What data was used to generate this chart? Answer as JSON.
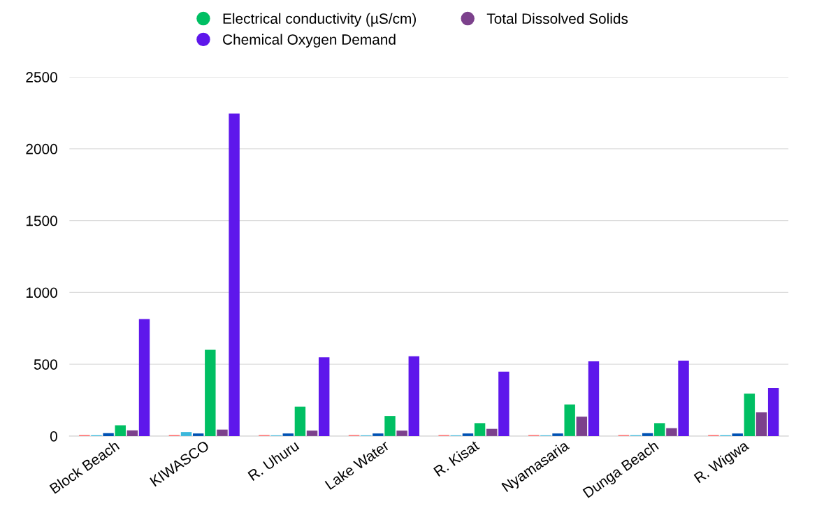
{
  "chart_data": {
    "type": "bar",
    "categories": [
      "Block Beach",
      "KIWASCO",
      "R. Uhuru",
      "Lake Water",
      "R. Kisat",
      "Nyamasaria",
      "Dunga Beach",
      "R. Wigwa"
    ],
    "series": [
      {
        "color": "#ff6b6b",
        "values": [
          7,
          7,
          7,
          7,
          7,
          7,
          7,
          7
        ]
      },
      {
        "color": "#3bb8dc",
        "values": [
          5,
          28,
          5,
          5,
          5,
          5,
          6,
          5
        ]
      },
      {
        "color": "#0052b4",
        "values": [
          20,
          18,
          18,
          18,
          18,
          18,
          20,
          18
        ]
      },
      {
        "name": "Electrical conductivity (µS/cm)",
        "color": "#00bf63",
        "values": [
          75,
          600,
          205,
          140,
          90,
          220,
          90,
          295
        ]
      },
      {
        "name": "Total Dissolved Solids",
        "color": "#7c418c",
        "values": [
          40,
          45,
          38,
          38,
          50,
          135,
          55,
          165
        ]
      },
      {
        "name": "Chemical Oxygen Demand",
        "color": "#5e17eb",
        "values": [
          815,
          2245,
          548,
          555,
          448,
          520,
          525,
          335
        ]
      }
    ],
    "ylim": [
      0,
      2500
    ],
    "yticks": [
      0,
      500,
      1000,
      1500,
      2000,
      2500
    ],
    "grid": "y",
    "legend": "top"
  }
}
